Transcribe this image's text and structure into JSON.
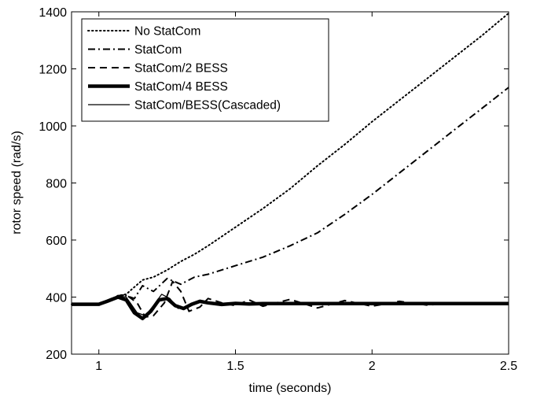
{
  "chart_data": {
    "type": "line",
    "title": "",
    "xlabel": "time (seconds)",
    "ylabel": "rotor speed (rad/s)",
    "xlim": [
      0.9,
      2.5
    ],
    "ylim": [
      200,
      1400
    ],
    "xticks": [
      1,
      1.5,
      2,
      2.5
    ],
    "xtick_labels": [
      "1",
      "1.5",
      "2",
      "2.5"
    ],
    "yticks": [
      200,
      400,
      600,
      800,
      1000,
      1200,
      1400
    ],
    "ytick_labels": [
      "200",
      "400",
      "600",
      "800",
      "1000",
      "1200",
      "1400"
    ],
    "grid": false,
    "legend_position": "top-left",
    "series": [
      {
        "name": "No StatCom",
        "style": "dotted",
        "color": "#000000",
        "x": [
          0.9,
          1.0,
          1.03,
          1.07,
          1.1,
          1.13,
          1.16,
          1.2,
          1.25,
          1.3,
          1.35,
          1.4,
          1.5,
          1.6,
          1.7,
          1.8,
          1.9,
          2.0,
          2.1,
          2.2,
          2.3,
          2.4,
          2.5
        ],
        "y": [
          375,
          375,
          385,
          405,
          410,
          435,
          460,
          470,
          495,
          525,
          550,
          580,
          645,
          710,
          780,
          860,
          935,
          1015,
          1090,
          1165,
          1240,
          1315,
          1395
        ]
      },
      {
        "name": "StatCom",
        "style": "dashdot",
        "color": "#000000",
        "x": [
          0.9,
          1.0,
          1.03,
          1.07,
          1.1,
          1.13,
          1.16,
          1.2,
          1.25,
          1.3,
          1.35,
          1.4,
          1.5,
          1.6,
          1.7,
          1.8,
          1.9,
          2.0,
          2.1,
          2.2,
          2.3,
          2.4,
          2.5
        ],
        "y": [
          375,
          375,
          385,
          400,
          405,
          395,
          440,
          420,
          465,
          445,
          470,
          480,
          510,
          540,
          580,
          625,
          690,
          760,
          835,
          910,
          985,
          1060,
          1135
        ]
      },
      {
        "name": "StatCom/2 BESS",
        "style": "dashed",
        "color": "#000000",
        "x": [
          0.9,
          1.0,
          1.03,
          1.07,
          1.1,
          1.14,
          1.17,
          1.2,
          1.24,
          1.27,
          1.3,
          1.33,
          1.37,
          1.4,
          1.45,
          1.5,
          1.55,
          1.6,
          1.7,
          1.8,
          1.9,
          2.0,
          2.1,
          2.2,
          2.3,
          2.4,
          2.5
        ],
        "y": [
          375,
          375,
          388,
          405,
          408,
          380,
          330,
          335,
          380,
          455,
          420,
          350,
          365,
          395,
          380,
          370,
          390,
          368,
          392,
          362,
          388,
          368,
          385,
          372,
          378,
          375,
          377
        ]
      },
      {
        "name": "StatCom/4 BESS",
        "style": "thick",
        "color": "#000000",
        "x": [
          0.9,
          1.0,
          1.03,
          1.07,
          1.1,
          1.13,
          1.16,
          1.19,
          1.22,
          1.25,
          1.28,
          1.31,
          1.34,
          1.37,
          1.4,
          1.45,
          1.5,
          1.55,
          1.6,
          2.5
        ],
        "y": [
          375,
          375,
          385,
          400,
          390,
          345,
          325,
          350,
          390,
          395,
          370,
          360,
          375,
          385,
          380,
          374,
          378,
          376,
          377,
          377
        ]
      },
      {
        "name": "StatCom/BESS(Cascaded)",
        "style": "thin",
        "color": "#000000",
        "x": [
          0.9,
          1.0,
          1.03,
          1.07,
          1.1,
          1.14,
          1.17,
          1.2,
          1.23,
          1.26,
          1.29,
          1.32,
          1.36,
          1.4,
          1.45,
          1.5,
          1.55,
          1.6,
          2.5
        ],
        "y": [
          375,
          375,
          388,
          405,
          400,
          345,
          335,
          370,
          410,
          395,
          360,
          365,
          385,
          378,
          370,
          380,
          374,
          377,
          377
        ]
      }
    ]
  }
}
